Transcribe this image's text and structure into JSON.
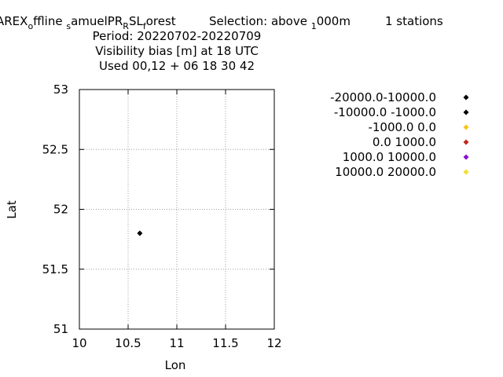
{
  "chart_data": {
    "type": "scatter",
    "title_parts": {
      "l1a": "AREX",
      "l1b": "o",
      "l1c": "ffline ",
      "l1d": "s",
      "l1e": "amuelPR",
      "l1f": "R",
      "l1g": "SL",
      "l1h": "f",
      "l1i": "orest",
      "l1j": "Selection: above ",
      "l1k": "1",
      "l1l": "000m",
      "l1m": "1 stations"
    },
    "title_lines": [
      "Period: 20220702-20220709",
      "Visibility bias [m] at  18 UTC",
      "Used  00,12  + 06 18 30 42"
    ],
    "xlabel": "Lon",
    "ylabel": "Lat",
    "xlim": [
      10,
      12
    ],
    "ylim": [
      51,
      53
    ],
    "x_ticks": [
      10,
      10.5,
      11,
      11.5,
      12
    ],
    "y_ticks": [
      51,
      51.5,
      52,
      52.5,
      53
    ],
    "x_tick_labels": [
      "10",
      "10.5",
      "11",
      "11.5",
      "12"
    ],
    "y_tick_labels": [
      "51",
      "51.5",
      "52",
      "52.5",
      "53"
    ],
    "grid": true,
    "legend_position": "right",
    "series": [
      {
        "name": "-20000.0-10000.0",
        "color": "#000000",
        "points": [
          [
            10.62,
            51.8
          ]
        ]
      },
      {
        "name": "-10000.0 -1000.0",
        "color": "#000000",
        "points": []
      },
      {
        "name": "-1000.0 0.0",
        "color": "#f5c518",
        "points": []
      },
      {
        "name": "0.0 1000.0",
        "color": "#c0281e",
        "points": []
      },
      {
        "name": "1000.0 10000.0",
        "color": "#8a10d0",
        "points": []
      },
      {
        "name": "10000.0 20000.0",
        "color": "#f0e030",
        "points": []
      }
    ]
  }
}
